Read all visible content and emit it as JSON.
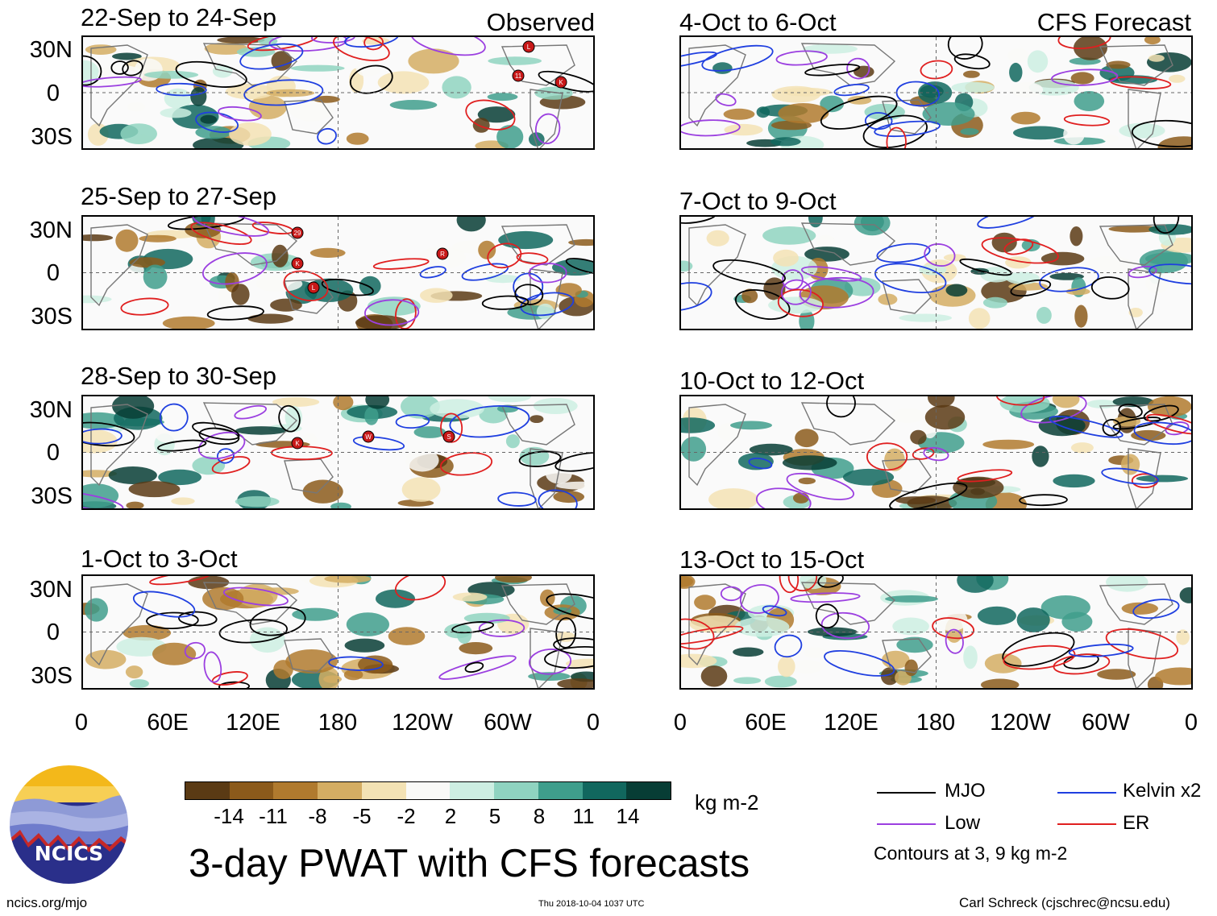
{
  "header": {
    "observed_label": "Observed",
    "forecast_label": "CFS Forecast"
  },
  "panels": [
    {
      "title": "22-Sep to 24-Sep",
      "column": "observed"
    },
    {
      "title": "25-Sep to 27-Sep",
      "column": "observed"
    },
    {
      "title": "28-Sep to 30-Sep",
      "column": "observed"
    },
    {
      "title": "1-Oct to 3-Oct",
      "column": "observed"
    },
    {
      "title": "4-Oct to 6-Oct",
      "column": "forecast"
    },
    {
      "title": "7-Oct to 9-Oct",
      "column": "forecast"
    },
    {
      "title": "10-Oct to 12-Oct",
      "column": "forecast"
    },
    {
      "title": "13-Oct to 15-Oct",
      "column": "forecast"
    }
  ],
  "lat_labels": [
    "30N",
    "0",
    "30S"
  ],
  "lon_labels": [
    "0",
    "60E",
    "120E",
    "180",
    "120W",
    "60W",
    "0"
  ],
  "storm_markers": [
    {
      "panel": 0,
      "label": "L"
    },
    {
      "panel": 0,
      "label": "11"
    },
    {
      "panel": 0,
      "label": "K"
    },
    {
      "panel": 1,
      "label": "29"
    },
    {
      "panel": 1,
      "label": "K"
    },
    {
      "panel": 1,
      "label": "L"
    },
    {
      "panel": 1,
      "label": "R"
    },
    {
      "panel": 2,
      "label": "K"
    },
    {
      "panel": 2,
      "label": "W"
    },
    {
      "panel": 2,
      "label": "S"
    }
  ],
  "colorbar": {
    "ticks": [
      "-14",
      "-11",
      "-8",
      "-5",
      "-2",
      "2",
      "5",
      "8",
      "11",
      "14"
    ],
    "colors": [
      "#5a3a14",
      "#8b5a1b",
      "#b07a2e",
      "#d4ad63",
      "#f3e2b4",
      "#f9f9f7",
      "#cdeee2",
      "#8fd3c0",
      "#3f9e8c",
      "#11675e",
      "#073d35"
    ],
    "units": "kg m-2"
  },
  "legend": {
    "items": [
      {
        "label": "MJO",
        "color": "#000000"
      },
      {
        "label": "Kelvin x2",
        "color": "#1f3fe0"
      },
      {
        "label": "Low",
        "color": "#9b3fe0"
      },
      {
        "label": "ER",
        "color": "#e01f1f"
      }
    ],
    "contour_note": "Contours at 3, 9 kg m-2"
  },
  "logo": {
    "text": "NCICS"
  },
  "title": "3-day PWAT with CFS forecasts",
  "footer": {
    "url": "ncics.org/mjo",
    "timestamp": "Thu 2018-10-04 1037 UTC",
    "author": "Carl Schreck (cjschrec@ncsu.edu)"
  }
}
